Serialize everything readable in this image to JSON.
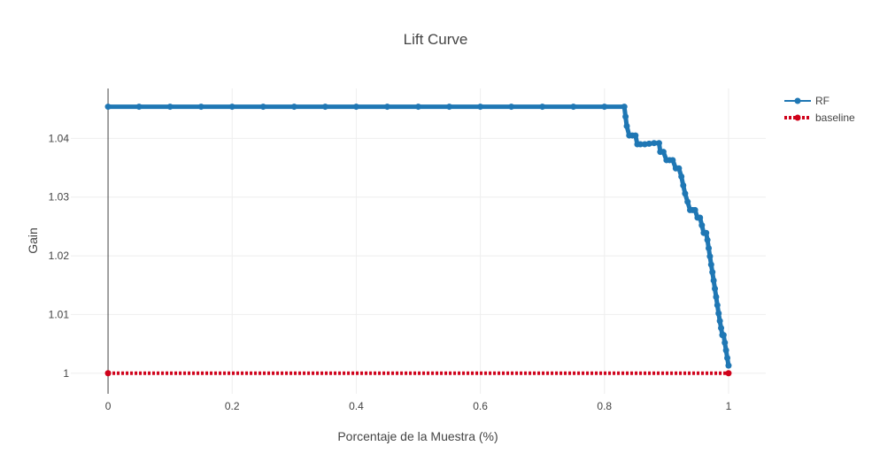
{
  "chart_data": {
    "type": "line",
    "title": "Lift Curve",
    "xlabel": "Porcentaje de la Muestra (%)",
    "ylabel": "Gain",
    "xlim": [
      -0.06,
      1.06
    ],
    "ylim": [
      0.9965,
      1.0485
    ],
    "x_ticks": [
      0,
      0.2,
      0.4,
      0.6,
      0.8,
      1
    ],
    "x_tick_labels": [
      "0",
      "0.2",
      "0.4",
      "0.6",
      "0.8",
      "1"
    ],
    "y_ticks": [
      1,
      1.01,
      1.02,
      1.03,
      1.04
    ],
    "y_tick_labels": [
      "1",
      "1.01",
      "1.02",
      "1.03",
      "1.04"
    ],
    "grid": true,
    "legend_position": "top-right",
    "colors": {
      "RF": "#1f77b4",
      "baseline": "#d0021b",
      "grid": "#eeeeee",
      "zero_line": "#444444",
      "text": "#444444"
    },
    "series": [
      {
        "name": "RF",
        "line_style": "solid",
        "x": [
          0,
          0.05,
          0.1,
          0.15,
          0.2,
          0.25,
          0.3,
          0.35,
          0.4,
          0.45,
          0.5,
          0.55,
          0.6,
          0.65,
          0.7,
          0.75,
          0.8,
          0.832,
          0.834,
          0.836,
          0.84,
          0.845,
          0.85,
          0.853,
          0.858,
          0.865,
          0.872,
          0.88,
          0.888,
          0.89,
          0.895,
          0.9,
          0.905,
          0.91,
          0.915,
          0.92,
          0.924,
          0.927,
          0.93,
          0.934,
          0.938,
          0.942,
          0.946,
          0.95,
          0.954,
          0.957,
          0.96,
          0.964,
          0.966,
          0.968,
          0.97,
          0.972,
          0.974,
          0.976,
          0.978,
          0.98,
          0.982,
          0.984,
          0.986,
          0.988,
          0.99,
          0.992,
          0.994,
          0.996,
          0.998,
          1
        ],
        "y": [
          1.0454,
          1.0454,
          1.0454,
          1.0454,
          1.0454,
          1.0454,
          1.0454,
          1.0454,
          1.0454,
          1.0454,
          1.0454,
          1.0454,
          1.0454,
          1.0454,
          1.0454,
          1.0454,
          1.0454,
          1.0454,
          1.0437,
          1.0421,
          1.0405,
          1.0405,
          1.0405,
          1.039,
          1.039,
          1.039,
          1.0391,
          1.0392,
          1.0392,
          1.0377,
          1.0377,
          1.0363,
          1.0363,
          1.0363,
          1.0349,
          1.0349,
          1.0335,
          1.032,
          1.0306,
          1.0292,
          1.0278,
          1.0278,
          1.0278,
          1.0265,
          1.0265,
          1.0252,
          1.0239,
          1.0239,
          1.0227,
          1.0213,
          1.0199,
          1.0185,
          1.0172,
          1.0158,
          1.0144,
          1.013,
          1.0116,
          1.0102,
          1.0089,
          1.0077,
          1.0065,
          1.0065,
          1.0052,
          1.0039,
          1.0026,
          1.0013
        ]
      },
      {
        "name": "baseline",
        "line_style": "dot",
        "x": [
          0,
          1
        ],
        "y": [
          1,
          1
        ]
      }
    ]
  }
}
